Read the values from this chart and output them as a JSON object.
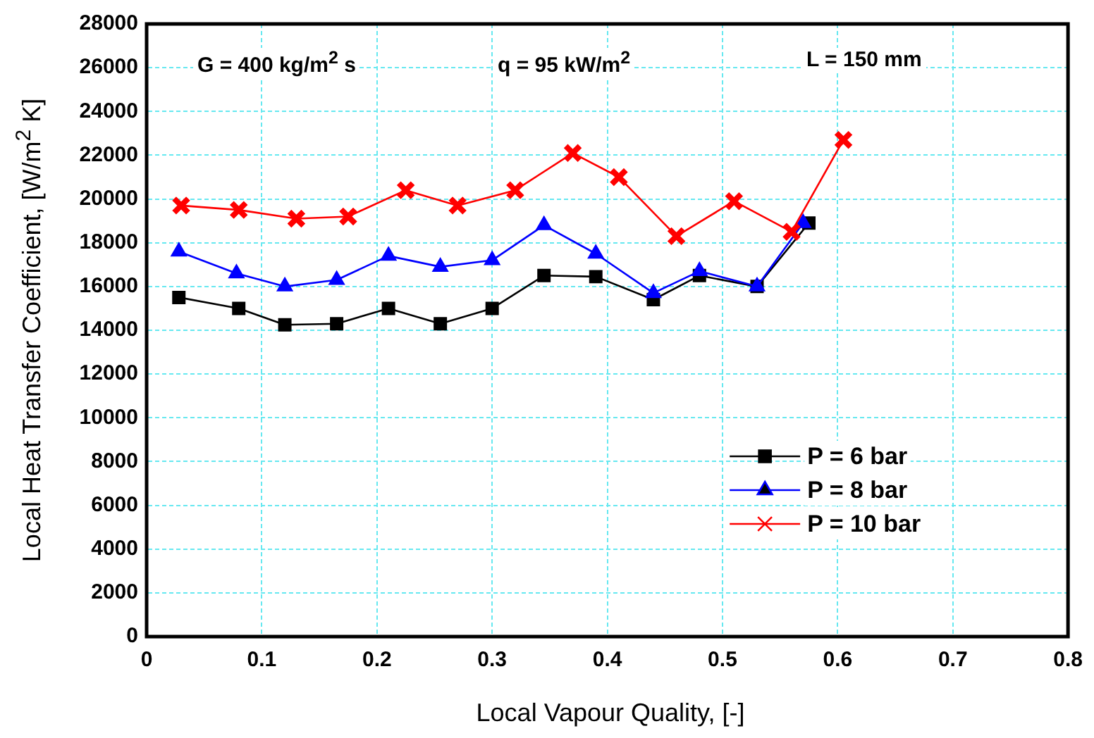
{
  "chart_data": {
    "type": "line",
    "xlabel": "Local Vapour Quality, [-]",
    "ylabel": "Local Heat Transfer Coefficient, [W/m$^{2}$ K]",
    "annotations": [
      "G = 400 kg/m$^{2}$ s",
      "q = 95 kW/m$^{2}$",
      "L = 150 mm"
    ],
    "xlim": [
      0,
      0.8
    ],
    "xticks": [
      0,
      0.1,
      0.2,
      0.3,
      0.4,
      0.5,
      0.6,
      0.7,
      0.8
    ],
    "ylim": [
      0,
      28000
    ],
    "yticks": [
      0,
      2000,
      4000,
      6000,
      8000,
      10000,
      12000,
      14000,
      16000,
      18000,
      20000,
      22000,
      24000,
      26000,
      28000
    ],
    "grid": true,
    "legend": "bottom right",
    "line_style": "solid",
    "series": [
      {
        "name": "P = 6 bar",
        "color": "#000000",
        "marker": "square",
        "x": [
          0.028,
          0.08,
          0.12,
          0.165,
          0.21,
          0.255,
          0.3,
          0.345,
          0.39,
          0.44,
          0.48,
          0.53,
          0.575
        ],
        "values": [
          15500,
          15000,
          14250,
          14300,
          15000,
          14300,
          15000,
          16500,
          16450,
          15400,
          16500,
          16000,
          18900
        ]
      },
      {
        "name": "P = 8 bar",
        "color": "#0000ff",
        "marker": "triangle",
        "x": [
          0.028,
          0.078,
          0.12,
          0.165,
          0.21,
          0.255,
          0.3,
          0.345,
          0.39,
          0.44,
          0.48,
          0.53,
          0.57
        ],
        "values": [
          17600,
          16600,
          16000,
          16300,
          17400,
          16900,
          17200,
          18800,
          17500,
          15700,
          16700,
          16000,
          18900
        ]
      },
      {
        "name": "P = 10 bar",
        "color": "#ff0000",
        "marker": "cross",
        "x": [
          0.03,
          0.08,
          0.13,
          0.175,
          0.225,
          0.27,
          0.32,
          0.37,
          0.41,
          0.46,
          0.51,
          0.56,
          0.605
        ],
        "values": [
          19700,
          19500,
          19100,
          19200,
          20400,
          19700,
          20400,
          22100,
          21000,
          18300,
          19900,
          18500,
          22700
        ]
      }
    ]
  }
}
